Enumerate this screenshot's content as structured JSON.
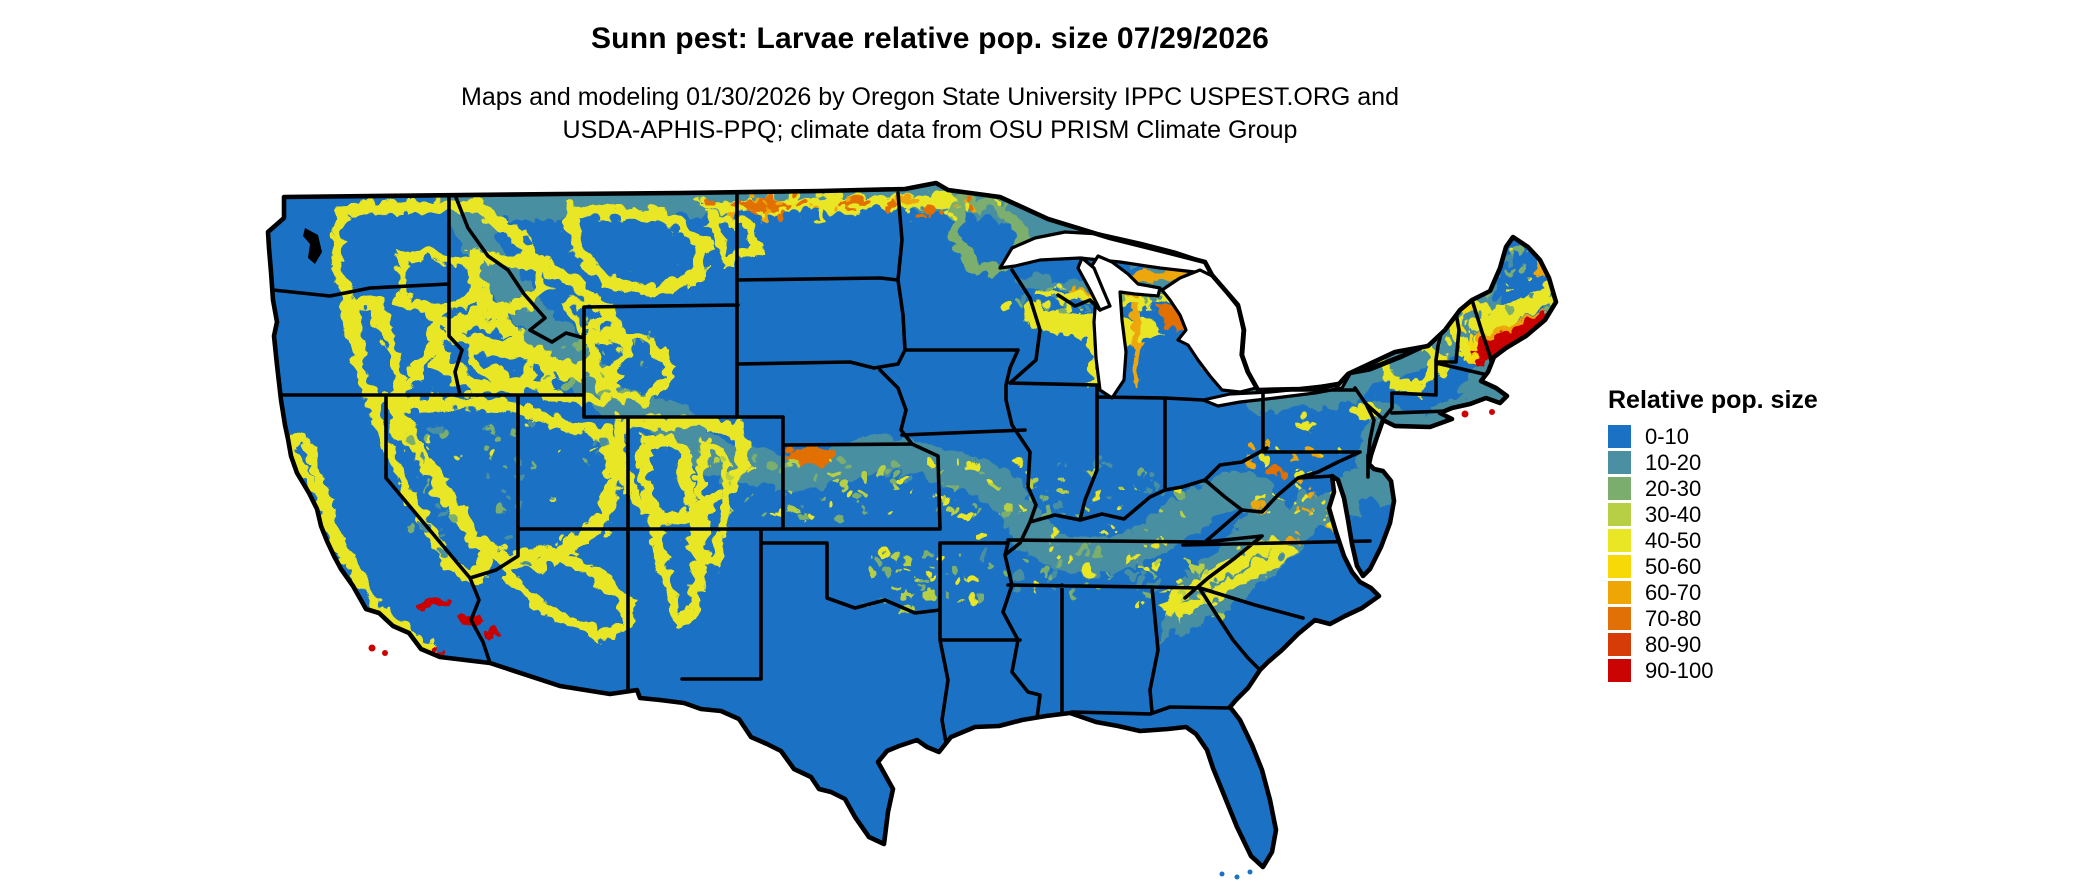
{
  "header": {
    "title": "Sunn pest: Larvae relative pop. size 07/29/2026",
    "subtitle_line1": "Maps and modeling 01/30/2026 by Oregon State University IPPC USPEST.ORG and",
    "subtitle_line2": "USDA-APHIS-PPQ; climate data from OSU PRISM Climate Group"
  },
  "legend": {
    "title": "Relative pop. size",
    "items": [
      {
        "label": "0-10",
        "color": "#1b72c5"
      },
      {
        "label": "10-20",
        "color": "#4a8fa2"
      },
      {
        "label": "20-30",
        "color": "#7bae6e"
      },
      {
        "label": "30-40",
        "color": "#b7cf45"
      },
      {
        "label": "40-50",
        "color": "#e9e626"
      },
      {
        "label": "50-60",
        "color": "#f7d908"
      },
      {
        "label": "60-70",
        "color": "#eea607"
      },
      {
        "label": "70-80",
        "color": "#e17006"
      },
      {
        "label": "80-90",
        "color": "#d63c08"
      },
      {
        "label": "90-100",
        "color": "#ca0403"
      }
    ]
  },
  "palette": {
    "state_border": "#000000",
    "water_and_background": "#ffffff"
  }
}
